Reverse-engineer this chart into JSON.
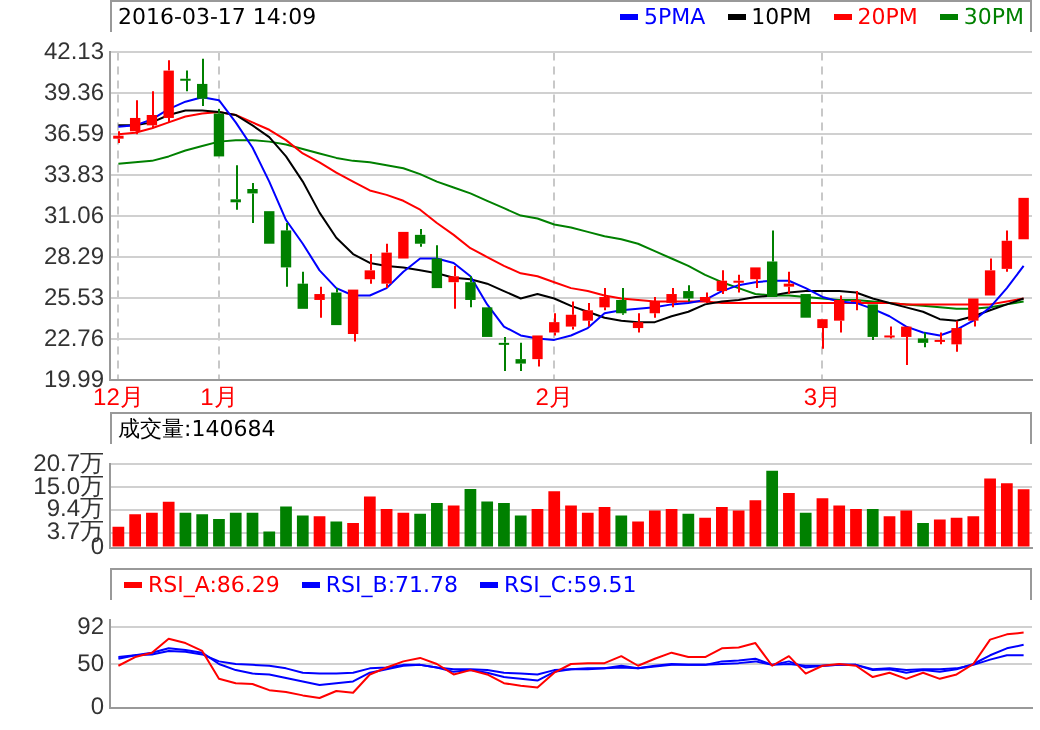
{
  "chart_data": [
    {
      "type": "candlestick",
      "title": "2016-03-17 14:09",
      "categories": [
        "12月",
        null,
        null,
        null,
        null,
        null,
        "1月",
        null,
        null,
        null,
        null,
        null,
        null,
        null,
        null,
        null,
        null,
        null,
        null,
        null,
        null,
        null,
        null,
        null,
        null,
        null,
        "2月",
        null,
        null,
        null,
        null,
        null,
        null,
        null,
        null,
        null,
        null,
        null,
        null,
        null,
        null,
        null,
        "3月",
        null,
        null,
        null,
        null,
        null,
        null,
        null,
        null,
        null,
        null,
        null,
        null
      ],
      "ohlc": [
        [
          36.3,
          36.8,
          36.0,
          36.5
        ],
        [
          36.8,
          38.9,
          36.6,
          37.7
        ],
        [
          37.2,
          39.5,
          37.0,
          37.9
        ],
        [
          37.7,
          41.6,
          37.4,
          40.9
        ],
        [
          40.35,
          40.9,
          39.5,
          40.25
        ],
        [
          40.0,
          41.7,
          38.5,
          39.0
        ],
        [
          38.0,
          38.3,
          35.1,
          35.1
        ],
        [
          32.2,
          34.5,
          31.5,
          32.0
        ],
        [
          32.9,
          33.3,
          30.6,
          32.6
        ],
        [
          31.4,
          31.4,
          29.2,
          29.2
        ],
        [
          30.1,
          30.6,
          26.3,
          27.6
        ],
        [
          26.5,
          27.3,
          24.8,
          24.8
        ],
        [
          25.4,
          26.3,
          24.2,
          25.8
        ],
        [
          25.9,
          26.2,
          23.7,
          23.7
        ],
        [
          23.1,
          26.1,
          22.6,
          26.1
        ],
        [
          26.8,
          28.5,
          26.5,
          27.4
        ],
        [
          26.5,
          29.2,
          26.2,
          28.6
        ],
        [
          28.2,
          30.0,
          28.2,
          30.0
        ],
        [
          29.8,
          30.2,
          29.0,
          29.2
        ],
        [
          28.2,
          29.1,
          26.2,
          26.2
        ],
        [
          26.6,
          27.7,
          24.8,
          27.0
        ],
        [
          26.6,
          27.0,
          24.9,
          25.4
        ],
        [
          24.9,
          24.9,
          22.9,
          22.9
        ],
        [
          22.5,
          22.9,
          20.6,
          22.4
        ],
        [
          21.4,
          22.5,
          20.6,
          21.1
        ],
        [
          21.4,
          23.0,
          20.9,
          23.0
        ],
        [
          23.2,
          24.5,
          23.0,
          23.9
        ],
        [
          23.6,
          25.3,
          23.4,
          24.4
        ],
        [
          24.0,
          25.2,
          23.6,
          24.7
        ],
        [
          24.9,
          26.2,
          24.7,
          25.6
        ],
        [
          25.4,
          26.2,
          24.4,
          24.5
        ],
        [
          23.5,
          24.5,
          23.2,
          23.9
        ],
        [
          24.5,
          25.6,
          24.2,
          25.3
        ],
        [
          25.2,
          26.2,
          24.9,
          25.8
        ],
        [
          26.0,
          26.4,
          25.3,
          25.5
        ],
        [
          25.3,
          25.9,
          25.2,
          25.6
        ],
        [
          26.0,
          27.4,
          25.8,
          26.7
        ],
        [
          26.6,
          27.1,
          25.9,
          26.7
        ],
        [
          26.8,
          27.6,
          26.2,
          27.6
        ],
        [
          28.0,
          30.1,
          25.6,
          25.6
        ],
        [
          26.3,
          27.3,
          25.8,
          26.5
        ],
        [
          25.8,
          25.8,
          24.2,
          24.2
        ],
        [
          23.5,
          24.1,
          22.1,
          24.1
        ],
        [
          24.0,
          25.7,
          23.2,
          25.4
        ],
        [
          25.3,
          26.0,
          24.7,
          25.4
        ],
        [
          25.1,
          25.1,
          22.7,
          22.9
        ],
        [
          22.9,
          23.6,
          22.8,
          23.0
        ],
        [
          22.9,
          23.6,
          21.0,
          23.6
        ],
        [
          22.8,
          23.2,
          22.2,
          22.5
        ],
        [
          22.6,
          23.2,
          22.4,
          22.7
        ],
        [
          22.4,
          24.0,
          21.9,
          23.5
        ],
        [
          24.0,
          25.5,
          23.6,
          25.5
        ],
        [
          25.7,
          28.2,
          25.7,
          27.4
        ],
        [
          27.5,
          30.1,
          27.3,
          29.4
        ],
        [
          29.5,
          32.3,
          29.5,
          32.3
        ]
      ],
      "colors": [
        "#ff0000",
        "#ff0000",
        "#ff0000",
        "#ff0000",
        "#008000",
        "#008000",
        "#008000",
        "#008000",
        "#008000",
        "#008000",
        "#008000",
        "#008000",
        "#ff0000",
        "#008000",
        "#ff0000",
        "#ff0000",
        "#ff0000",
        "#ff0000",
        "#008000",
        "#008000",
        "#ff0000",
        "#008000",
        "#008000",
        "#008000",
        "#008000",
        "#ff0000",
        "#ff0000",
        "#ff0000",
        "#ff0000",
        "#ff0000",
        "#008000",
        "#ff0000",
        "#ff0000",
        "#ff0000",
        "#008000",
        "#ff0000",
        "#ff0000",
        "#ff0000",
        "#ff0000",
        "#008000",
        "#ff0000",
        "#008000",
        "#ff0000",
        "#ff0000",
        "#ff0000",
        "#008000",
        "#ff0000",
        "#ff0000",
        "#008000",
        "#ff0000",
        "#ff0000",
        "#ff0000",
        "#ff0000",
        "#ff0000",
        "#ff0000"
      ],
      "series": [
        {
          "type": "line",
          "name": "5PMA",
          "color": "#0000ff",
          "values": [
            37.1,
            37.2,
            37.6,
            38.3,
            38.8,
            39.1,
            38.9,
            37.4,
            35.7,
            33.4,
            30.8,
            29.2,
            27.4,
            26.2,
            25.7,
            25.7,
            26.2,
            27.3,
            28.2,
            28.2,
            27.9,
            27.0,
            25.1,
            23.6,
            23.0,
            22.8,
            22.7,
            23.0,
            23.5,
            24.5,
            24.7,
            24.8,
            24.9,
            25.1,
            25.2,
            25.4,
            26.0,
            26.4,
            26.6,
            26.7,
            26.7,
            26.2,
            25.6,
            25.3,
            25.2,
            24.8,
            24.3,
            23.6,
            23.2,
            23.0,
            23.4,
            24.0,
            24.9,
            26.2,
            27.7
          ]
        },
        {
          "type": "line",
          "name": "10PM",
          "color": "#000000",
          "values": [
            37.2,
            37.2,
            37.4,
            37.9,
            38.2,
            38.2,
            38.1,
            37.9,
            37.2,
            36.4,
            35.1,
            33.4,
            31.3,
            29.6,
            28.5,
            27.9,
            27.7,
            27.6,
            27.4,
            27.2,
            26.9,
            26.8,
            26.5,
            26.0,
            25.5,
            25.8,
            25.5,
            25.0,
            24.6,
            24.2,
            24.0,
            23.9,
            23.9,
            24.3,
            24.6,
            25.1,
            25.3,
            25.4,
            25.6,
            25.7,
            25.9,
            26.0,
            26.0,
            26.0,
            25.9,
            25.5,
            25.2,
            24.9,
            24.6,
            24.1,
            24.0,
            24.3,
            24.7,
            25.1,
            25.5
          ]
        },
        {
          "type": "line",
          "name": "20PM",
          "color": "#ff0000",
          "values": [
            36.6,
            36.7,
            37.0,
            37.4,
            37.8,
            38.0,
            38.1,
            37.9,
            37.4,
            36.9,
            36.2,
            35.3,
            34.7,
            34.0,
            33.4,
            32.8,
            32.5,
            32.1,
            31.5,
            30.6,
            29.8,
            28.9,
            28.3,
            27.7,
            27.2,
            27.0,
            26.6,
            26.2,
            26.0,
            25.7,
            25.5,
            25.4,
            25.3,
            25.3,
            25.3,
            25.3,
            25.2,
            25.2,
            25.2,
            25.2,
            25.2,
            25.2,
            25.2,
            25.2,
            25.2,
            25.2,
            25.2,
            25.1,
            25.1,
            25.1,
            25.1,
            25.1,
            25.1,
            25.3,
            25.5
          ]
        },
        {
          "type": "line",
          "name": "30PM",
          "color": "#008000",
          "values": [
            34.6,
            34.7,
            34.8,
            35.1,
            35.5,
            35.8,
            36.1,
            36.2,
            36.2,
            36.1,
            35.9,
            35.6,
            35.3,
            35.0,
            34.8,
            34.7,
            34.5,
            34.3,
            33.9,
            33.4,
            33.0,
            32.6,
            32.1,
            31.6,
            31.1,
            30.9,
            30.5,
            30.3,
            30.0,
            29.7,
            29.5,
            29.2,
            28.7,
            28.2,
            27.7,
            27.1,
            26.6,
            26.2,
            25.8,
            25.7,
            25.7,
            25.6,
            25.5,
            25.4,
            25.4,
            25.3,
            25.2,
            25.1,
            25.0,
            24.9,
            24.8,
            24.8,
            24.9,
            25.1,
            25.3
          ]
        }
      ],
      "ylim": [
        19.99,
        42.13
      ],
      "yticks": [
        19.99,
        22.76,
        25.53,
        28.29,
        31.06,
        33.83,
        36.59,
        39.36,
        42.13
      ],
      "grid": true,
      "legend": "top right",
      "marker": "none"
    },
    {
      "type": "bar",
      "title": "成交量:140684",
      "categories": [
        null,
        null,
        null,
        null,
        null,
        null,
        null,
        null,
        null,
        null,
        null,
        null,
        null,
        null,
        null,
        null,
        null,
        null,
        null,
        null,
        null,
        null,
        null,
        null,
        null,
        null,
        null,
        null,
        null,
        null,
        null,
        null,
        null,
        null,
        null,
        null,
        null,
        null,
        null,
        null,
        null,
        null,
        null,
        null,
        null,
        null,
        null,
        null,
        null,
        null,
        null,
        null,
        null,
        null,
        null
      ],
      "values": [
        5.2,
        8.3,
        8.7,
        11.4,
        8.7,
        8.3,
        7.1,
        8.7,
        8.7,
        4.0,
        10.2,
        8.0,
        7.8,
        6.5,
        6.1,
        12.7,
        9.6,
        8.7,
        8.4,
        11.1,
        10.5,
        14.6,
        11.5,
        11.1,
        8.0,
        9.6,
        14.0,
        10.5,
        8.7,
        10.1,
        8.0,
        6.5,
        9.2,
        9.6,
        8.4,
        7.4,
        10.1,
        9.2,
        11.8,
        19.1,
        13.6,
        8.7,
        12.3,
        10.5,
        9.6,
        9.6,
        7.8,
        9.2,
        6.1,
        7.0,
        7.4,
        7.8,
        17.2,
        16.0,
        14.5
      ],
      "colors": [
        "#ff0000",
        "#ff0000",
        "#ff0000",
        "#ff0000",
        "#008000",
        "#008000",
        "#008000",
        "#008000",
        "#008000",
        "#008000",
        "#008000",
        "#008000",
        "#ff0000",
        "#008000",
        "#ff0000",
        "#ff0000",
        "#ff0000",
        "#ff0000",
        "#008000",
        "#008000",
        "#ff0000",
        "#008000",
        "#008000",
        "#008000",
        "#008000",
        "#ff0000",
        "#ff0000",
        "#ff0000",
        "#ff0000",
        "#ff0000",
        "#008000",
        "#ff0000",
        "#ff0000",
        "#ff0000",
        "#008000",
        "#ff0000",
        "#ff0000",
        "#ff0000",
        "#ff0000",
        "#008000",
        "#ff0000",
        "#008000",
        "#ff0000",
        "#ff0000",
        "#ff0000",
        "#008000",
        "#ff0000",
        "#ff0000",
        "#008000",
        "#ff0000",
        "#ff0000",
        "#ff0000",
        "#ff0000",
        "#ff0000",
        "#ff0000"
      ],
      "ylim": [
        0,
        20.7
      ],
      "yticks": [
        0,
        {
          "value": 3.7,
          "label": "3.7万"
        },
        {
          "value": 9.4,
          "label": "9.4万"
        },
        {
          "value": 15.0,
          "label": "15.0万"
        },
        {
          "value": 20.7,
          "label": "20.7万"
        }
      ],
      "grid": "y",
      "tick_labels": "y"
    },
    {
      "type": "line",
      "categories": [
        null,
        null,
        null,
        null,
        null,
        null,
        null,
        null,
        null,
        null,
        null,
        null,
        null,
        null,
        null,
        null,
        null,
        null,
        null,
        null,
        null,
        null,
        null,
        null,
        null,
        null,
        null,
        null,
        null,
        null,
        null,
        null,
        null,
        null,
        null,
        null,
        null,
        null,
        null,
        null,
        null,
        null,
        null,
        null,
        null,
        null,
        null,
        null,
        null,
        null,
        null,
        null,
        null,
        null,
        null
      ],
      "series": [
        {
          "name": "RSI_A:86.29",
          "color": "#ff0000",
          "values": [
            48,
            58,
            63,
            79,
            74,
            65,
            33,
            28,
            27,
            20,
            18,
            14,
            11,
            19,
            17,
            38,
            46,
            53,
            57,
            50,
            38,
            43,
            38,
            28,
            25,
            23,
            40,
            50,
            51,
            51,
            59,
            48,
            56,
            63,
            58,
            58,
            68,
            69,
            74,
            48,
            59,
            39,
            48,
            50,
            48,
            35,
            40,
            33,
            40,
            33,
            38,
            50,
            78,
            84,
            86
          ]
        },
        {
          "name": "RSI_B:71.78",
          "color": "#0000ff",
          "values": [
            58,
            60,
            63,
            68,
            66,
            63,
            50,
            43,
            39,
            38,
            34,
            30,
            26,
            28,
            30,
            40,
            44,
            48,
            49,
            46,
            41,
            43,
            40,
            35,
            33,
            31,
            41,
            44,
            45,
            45,
            48,
            45,
            48,
            50,
            49,
            49,
            53,
            54,
            56,
            49,
            53,
            46,
            48,
            49,
            49,
            43,
            44,
            40,
            43,
            41,
            44,
            50,
            60,
            68,
            72
          ]
        },
        {
          "name": "RSI_C:59.51",
          "color": "#0000ff",
          "values": [
            56,
            60,
            61,
            65,
            64,
            61,
            53,
            50,
            49,
            48,
            45,
            40,
            39,
            39,
            40,
            45,
            46,
            49,
            49,
            46,
            44,
            44,
            43,
            40,
            39,
            38,
            43,
            44,
            44,
            45,
            46,
            45,
            47,
            49,
            49,
            49,
            50,
            51,
            53,
            49,
            50,
            48,
            48,
            49,
            49,
            44,
            45,
            43,
            44,
            44,
            45,
            49,
            55,
            60,
            60
          ]
        }
      ],
      "ylim": [
        0,
        100
      ],
      "yticks": [
        0,
        50,
        92
      ],
      "grid": "y",
      "legend": "top left",
      "marker": "none",
      "tick_labels": "y"
    }
  ]
}
